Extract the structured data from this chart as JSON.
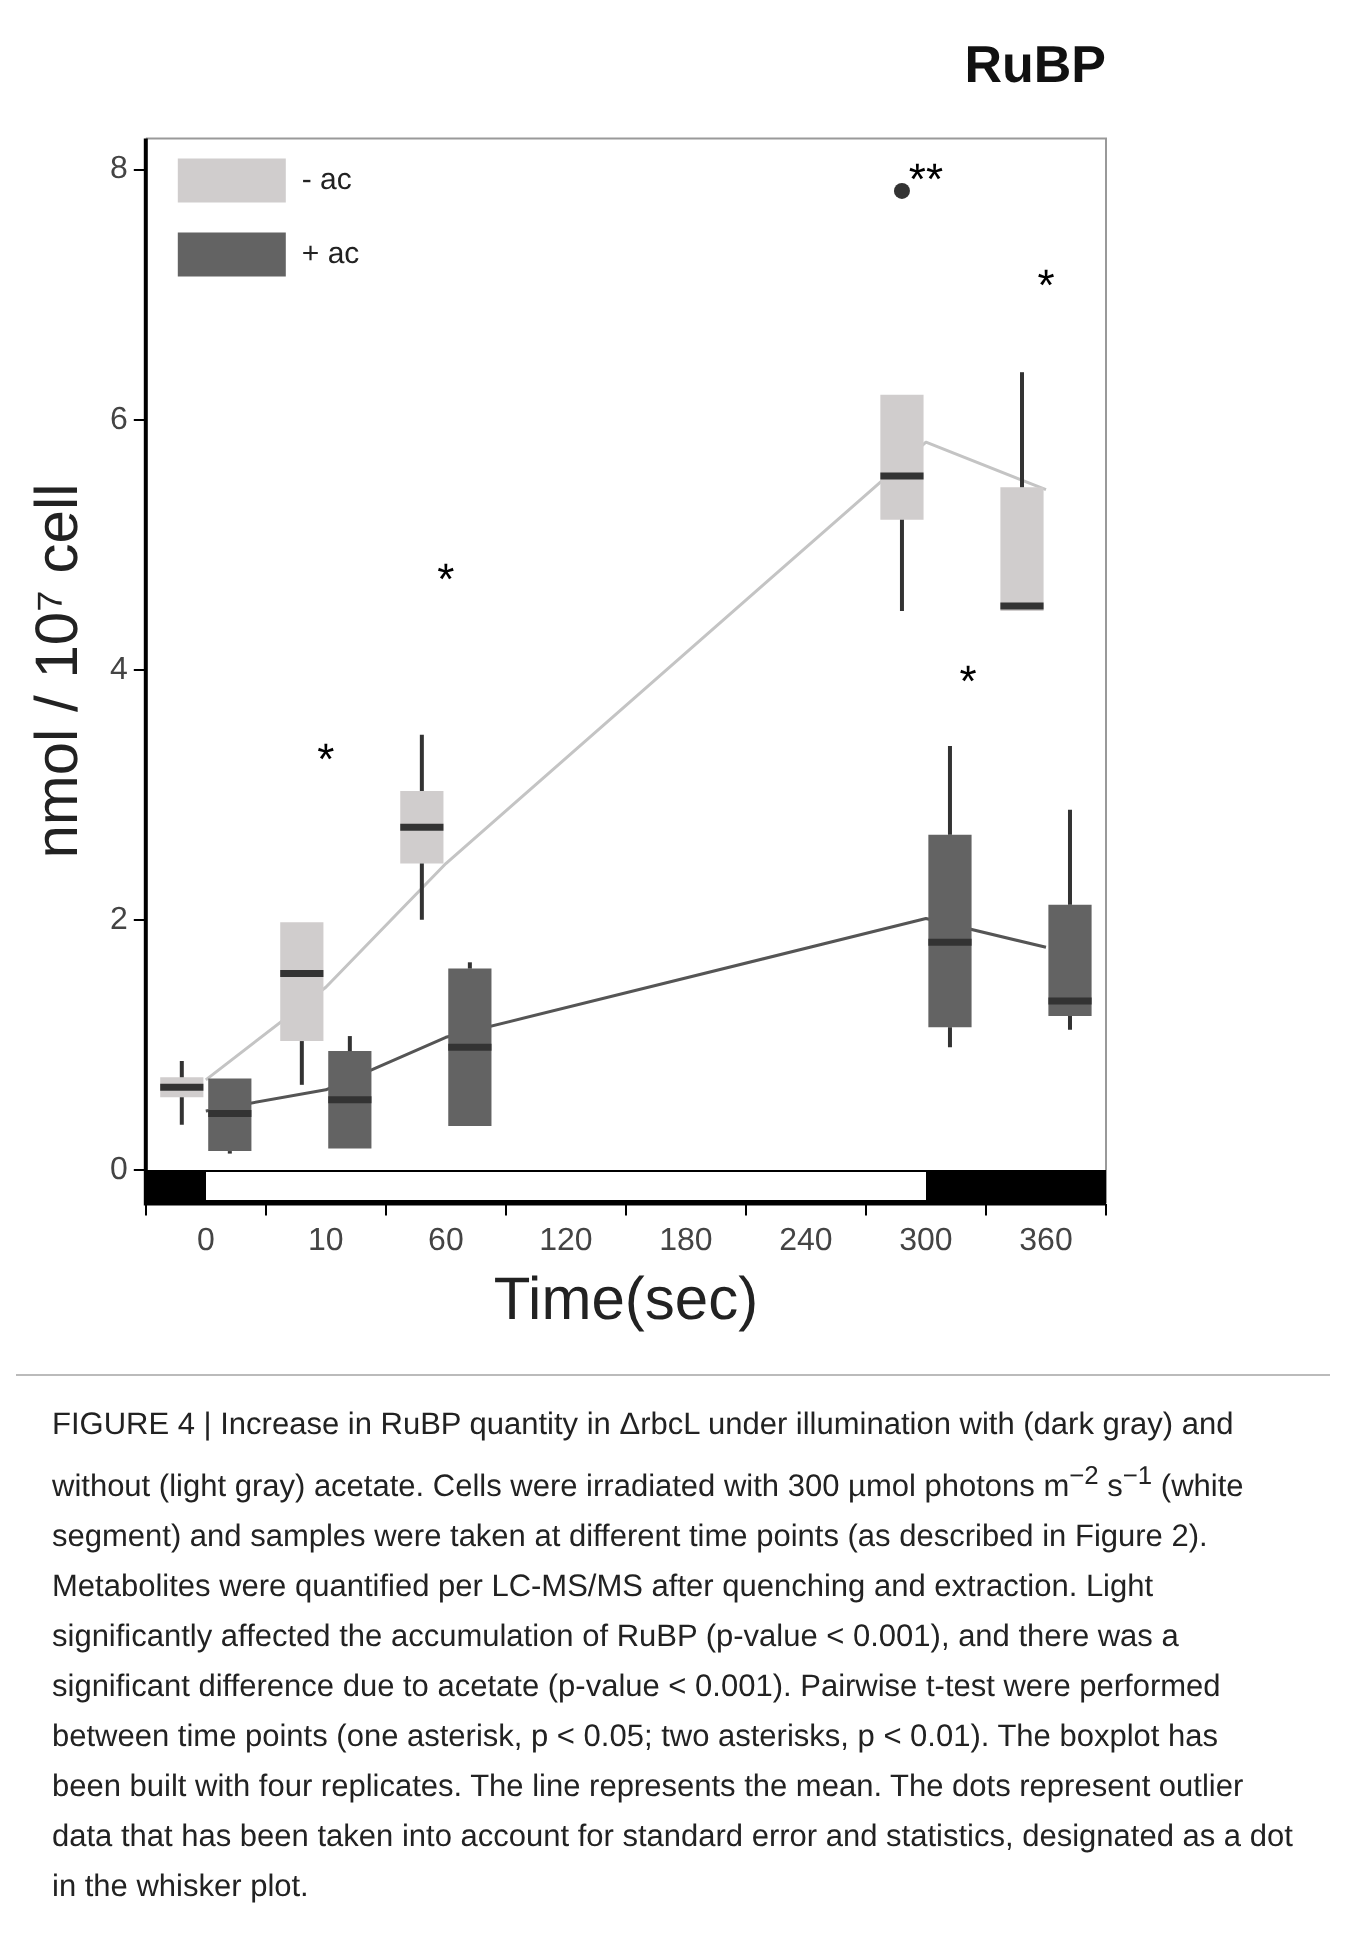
{
  "chart_data": {
    "type": "box",
    "title": "RuBP",
    "xlabel": "Time(sec)",
    "ylabel": "nmol / 10⁷ cell",
    "categories": [
      "0",
      "10",
      "60",
      "120",
      "180",
      "240",
      "300",
      "360"
    ],
    "series": [
      {
        "name": "- ac",
        "color": "#d0cdcd",
        "boxes": [
          {
            "low": 0.36,
            "q1": 0.58,
            "median": 0.66,
            "q3": 0.74,
            "high": 0.87
          },
          {
            "low": 0.68,
            "q1": 1.03,
            "median": 1.57,
            "q3": 1.98,
            "high": 1.98
          },
          {
            "low": 2.0,
            "q1": 2.45,
            "median": 2.74,
            "q3": 3.03,
            "high": 3.48
          },
          null,
          null,
          null,
          {
            "low": 4.47,
            "q1": 5.2,
            "median": 5.55,
            "q3": 6.2,
            "high": 6.2,
            "outliers": [
              7.83
            ]
          },
          {
            "low": 4.47,
            "q1": 4.47,
            "median": 4.51,
            "q3": 5.46,
            "high": 6.38
          }
        ]
      },
      {
        "name": "+ ac",
        "color": "#636363",
        "boxes": [
          {
            "low": 0.13,
            "q1": 0.15,
            "median": 0.45,
            "q3": 0.73,
            "high": 0.73
          },
          {
            "low": 0.17,
            "q1": 0.17,
            "median": 0.56,
            "q3": 0.95,
            "high": 1.07
          },
          {
            "low": 0.35,
            "q1": 0.35,
            "median": 0.98,
            "q3": 1.61,
            "high": 1.66
          },
          null,
          null,
          null,
          {
            "low": 0.98,
            "q1": 1.14,
            "median": 1.82,
            "q3": 2.68,
            "high": 3.39
          },
          {
            "low": 1.12,
            "q1": 1.23,
            "median": 1.35,
            "q3": 2.12,
            "high": 2.88
          }
        ]
      },
      {
        "type": "line",
        "color": "#c4c4c4",
        "values": [
          0.72,
          1.46,
          2.45,
          null,
          null,
          null,
          5.82,
          5.44
        ]
      },
      {
        "type": "line",
        "color": "#555555",
        "values": [
          0.47,
          0.64,
          1.06,
          null,
          null,
          null,
          2.01,
          1.78
        ]
      }
    ],
    "ylim": [
      -0.27,
      8.25
    ],
    "yticks": [
      0,
      2,
      4,
      6,
      8
    ],
    "grid": false,
    "legend": "top left",
    "annotations": [
      "*",
      "*",
      "**",
      "*",
      "*",
      "FIGURE 4 | Increase in RuBP quantity in ΔrbcL under illumination with (dark gray) and without (light gray) acetate. Cells were irradiated with 300 µmol photons m$^{−2}$ s$^{−1}$ (white segment) and samples were taken at different time points (as described in Figure 2). Metabolites were quantified per LC-MS/MS after quenching and extraction. Light significantly affected the accumulation of RuBP (p-value < 0.001), and there was a significant difference due to acetate (p-value < 0.001). Pairwise t-test were performed between time points (one asterisk, p < 0.05; two asterisks, p < 0.01). The boxplot has been built with four replicates. The line represents the mean. The dots represent outlier data that has been taken into account for standard error and statistics, designated as a dot in the whisker plot."
    ]
  }
}
